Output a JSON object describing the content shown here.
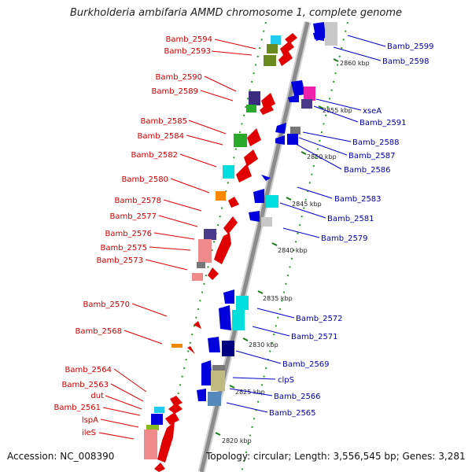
{
  "title": "Burkholderia ambifaria AMMD chromosome 1, complete genome",
  "footer": {
    "accession": "Accession: NC_008390",
    "summary": "Topology: circular; Length: 3,556,545 bp; Genes: 3,281"
  },
  "ticks": [
    "2860 kbp",
    "2855 kbp",
    "2850 kbp",
    "2845 kbp",
    "2840 kbp",
    "2835 kbp",
    "2830 kbp",
    "2825 kbp",
    "2820 kbp"
  ],
  "left_labels": [
    "Bamb_2594",
    "Bamb_2593",
    "Bamb_2590",
    "Bamb_2589",
    "Bamb_2585",
    "Bamb_2584",
    "Bamb_2582",
    "Bamb_2580",
    "Bamb_2578",
    "Bamb_2577",
    "Bamb_2576",
    "Bamb_2575",
    "Bamb_2573",
    "Bamb_2570",
    "Bamb_2568",
    "Bamb_2564",
    "Bamb_2563",
    "dut",
    "Bamb_2561",
    "lspA",
    "ileS"
  ],
  "right_labels": [
    "Bamb_2599",
    "Bamb_2598",
    "xseA",
    "Bamb_2591",
    "Bamb_2588",
    "Bamb_2587",
    "Bamb_2586",
    "Bamb_2583",
    "Bamb_2581",
    "Bamb_2579",
    "Bamb_2572",
    "Bamb_2571",
    "Bamb_2569",
    "clpS",
    "Bamb_2566",
    "Bamb_2565"
  ],
  "colors": {
    "reverse_strand_label": "#cc0000",
    "forward_strand_label": "#0000aa",
    "backbone": "#8c8c8c"
  }
}
